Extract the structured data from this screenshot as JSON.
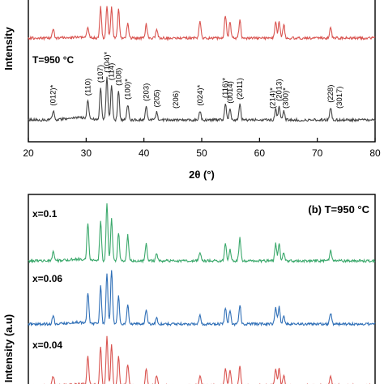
{
  "chart_data": [
    {
      "panel": "a",
      "type": "line",
      "xlabel": "2θ (°)",
      "ylabel": "Intensity",
      "xlim": [
        20,
        80
      ],
      "x_ticks": [
        "20",
        "30",
        "40",
        "50",
        "60",
        "70",
        "80"
      ],
      "grid": false,
      "annotations": [
        {
          "text": "T=950 °C"
        }
      ],
      "series": [
        {
          "color": "#d9534f",
          "peaks": [
            {
              "x": 24.3,
              "y": 0.3
            },
            {
              "x": 30.3,
              "y": 0.35
            },
            {
              "x": 32.5,
              "y": 1.0
            },
            {
              "x": 33.6,
              "y": 1.0
            },
            {
              "x": 34.4,
              "y": 1.0
            },
            {
              "x": 35.6,
              "y": 0.95
            },
            {
              "x": 37.2,
              "y": 0.5
            },
            {
              "x": 40.4,
              "y": 0.45
            },
            {
              "x": 42.2,
              "y": 0.3
            },
            {
              "x": 49.7,
              "y": 0.55
            },
            {
              "x": 54.1,
              "y": 0.75
            },
            {
              "x": 54.9,
              "y": 0.5
            },
            {
              "x": 56.6,
              "y": 0.6
            },
            {
              "x": 62.8,
              "y": 0.5
            },
            {
              "x": 63.4,
              "y": 0.55
            },
            {
              "x": 64.2,
              "y": 0.45
            },
            {
              "x": 72.3,
              "y": 0.35
            }
          ]
        },
        {
          "color": "#444444",
          "peaks": [
            {
              "x": 24.3,
              "y": 0.12
            },
            {
              "x": 30.3,
              "y": 0.25
            },
            {
              "x": 32.5,
              "y": 0.42
            },
            {
              "x": 33.6,
              "y": 0.55
            },
            {
              "x": 34.4,
              "y": 0.45
            },
            {
              "x": 35.6,
              "y": 0.38
            },
            {
              "x": 37.2,
              "y": 0.2
            },
            {
              "x": 40.4,
              "y": 0.18
            },
            {
              "x": 42.2,
              "y": 0.1
            },
            {
              "x": 49.7,
              "y": 0.12
            },
            {
              "x": 54.1,
              "y": 0.22
            },
            {
              "x": 54.9,
              "y": 0.15
            },
            {
              "x": 56.6,
              "y": 0.2
            },
            {
              "x": 62.8,
              "y": 0.14
            },
            {
              "x": 63.4,
              "y": 0.18
            },
            {
              "x": 64.2,
              "y": 0.12
            },
            {
              "x": 72.3,
              "y": 0.16
            }
          ]
        }
      ],
      "peak_labels": [
        {
          "text": "(012)*",
          "x": 24.3
        },
        {
          "text": "(110)",
          "x": 30.3
        },
        {
          "text": "(107)",
          "x": 32.5
        },
        {
          "text": "(104)*",
          "x": 33.6
        },
        {
          "text": "(114)",
          "x": 34.4
        },
        {
          "text": "(108)",
          "x": 35.6
        },
        {
          "text": "(100)*",
          "x": 37.2
        },
        {
          "text": "(203)",
          "x": 40.4
        },
        {
          "text": "(205)",
          "x": 42.2
        },
        {
          "text": "(206)",
          "x": 45.5
        },
        {
          "text": "(024)*",
          "x": 49.7
        },
        {
          "text": "(116)*",
          "x": 54.1
        },
        {
          "text": "(0014)",
          "x": 54.9
        },
        {
          "text": "(2011)",
          "x": 56.6
        },
        {
          "text": "(214)*",
          "x": 62.3
        },
        {
          "text": "(2013)",
          "x": 63.4
        },
        {
          "text": "(300)*",
          "x": 64.5
        },
        {
          "text": "(228)",
          "x": 72.3
        },
        {
          "text": "(3017)",
          "x": 73.8
        }
      ]
    },
    {
      "panel": "b",
      "type": "line",
      "title": "(b) T=950 °C",
      "ylabel": "Intensity (a.u)",
      "xlim": [
        20,
        80
      ],
      "grid": false,
      "series": [
        {
          "name": "x=0.1",
          "color": "#3aa86b",
          "peaks": [
            {
              "x": 24.3,
              "y": 0.15
            },
            {
              "x": 30.3,
              "y": 0.65
            },
            {
              "x": 32.5,
              "y": 0.7
            },
            {
              "x": 33.6,
              "y": 1.0
            },
            {
              "x": 34.4,
              "y": 0.75
            },
            {
              "x": 35.6,
              "y": 0.5
            },
            {
              "x": 37.2,
              "y": 0.45
            },
            {
              "x": 40.4,
              "y": 0.3
            },
            {
              "x": 42.2,
              "y": 0.12
            },
            {
              "x": 49.7,
              "y": 0.15
            },
            {
              "x": 54.1,
              "y": 0.3
            },
            {
              "x": 54.9,
              "y": 0.2
            },
            {
              "x": 56.6,
              "y": 0.4
            },
            {
              "x": 62.8,
              "y": 0.3
            },
            {
              "x": 63.4,
              "y": 0.3
            },
            {
              "x": 64.2,
              "y": 0.15
            },
            {
              "x": 72.3,
              "y": 0.18
            }
          ]
        },
        {
          "name": "x=0.06",
          "color": "#2f6fb7",
          "peaks": [
            {
              "x": 24.3,
              "y": 0.15
            },
            {
              "x": 30.3,
              "y": 0.55
            },
            {
              "x": 32.5,
              "y": 0.7
            },
            {
              "x": 33.6,
              "y": 0.9
            },
            {
              "x": 34.4,
              "y": 1.0
            },
            {
              "x": 35.6,
              "y": 0.5
            },
            {
              "x": 37.2,
              "y": 0.35
            },
            {
              "x": 40.4,
              "y": 0.28
            },
            {
              "x": 42.2,
              "y": 0.12
            },
            {
              "x": 49.7,
              "y": 0.15
            },
            {
              "x": 54.1,
              "y": 0.3
            },
            {
              "x": 54.9,
              "y": 0.25
            },
            {
              "x": 56.6,
              "y": 0.35
            },
            {
              "x": 62.8,
              "y": 0.3
            },
            {
              "x": 63.4,
              "y": 0.32
            },
            {
              "x": 64.2,
              "y": 0.15
            },
            {
              "x": 72.3,
              "y": 0.2
            }
          ]
        },
        {
          "name": "x=0.04",
          "color": "#d9534f",
          "peaks": [
            {
              "x": 24.3,
              "y": 0.2
            },
            {
              "x": 30.3,
              "y": 0.6
            },
            {
              "x": 32.5,
              "y": 0.8
            },
            {
              "x": 33.6,
              "y": 1.0
            },
            {
              "x": 34.4,
              "y": 0.85
            },
            {
              "x": 35.6,
              "y": 0.6
            },
            {
              "x": 37.2,
              "y": 0.45
            },
            {
              "x": 40.4,
              "y": 0.35
            },
            {
              "x": 42.2,
              "y": 0.2
            },
            {
              "x": 49.7,
              "y": 0.2
            },
            {
              "x": 54.1,
              "y": 0.35
            },
            {
              "x": 54.9,
              "y": 0.3
            },
            {
              "x": 56.6,
              "y": 0.4
            },
            {
              "x": 62.8,
              "y": 0.35
            },
            {
              "x": 63.4,
              "y": 0.35
            },
            {
              "x": 64.2,
              "y": 0.2
            },
            {
              "x": 72.3,
              "y": 0.2
            }
          ]
        }
      ]
    }
  ]
}
